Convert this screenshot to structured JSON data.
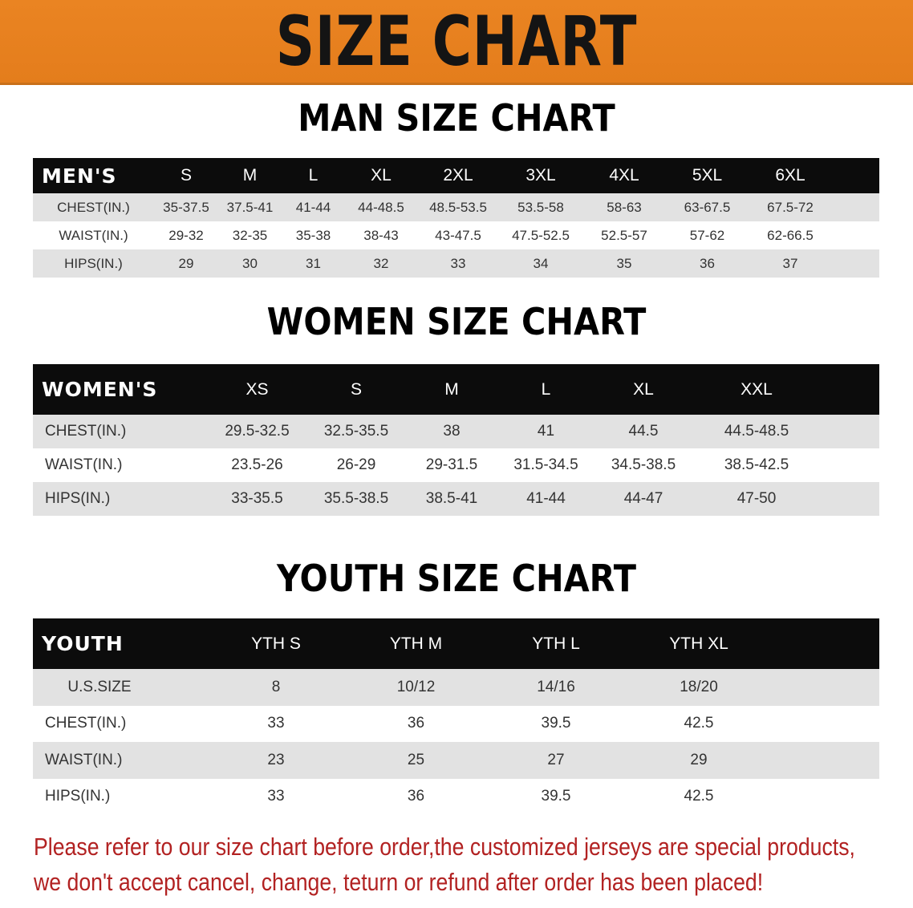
{
  "banner": {
    "title": "SIZE CHART",
    "color": "#E8801F"
  },
  "men": {
    "title": "MAN SIZE CHART",
    "header": [
      "MEN'S",
      "S",
      "M",
      "L",
      "XL",
      "2XL",
      "3XL",
      "4XL",
      "5XL",
      "6XL"
    ],
    "rows": [
      [
        "CHEST(IN.)",
        "35-37.5",
        "37.5-41",
        "41-44",
        "44-48.5",
        "48.5-53.5",
        "53.5-58",
        "58-63",
        "63-67.5",
        "67.5-72"
      ],
      [
        "WAIST(IN.)",
        "29-32",
        "32-35",
        "35-38",
        "38-43",
        "43-47.5",
        "47.5-52.5",
        "52.5-57",
        "57-62",
        "62-66.5"
      ],
      [
        "HIPS(IN.)",
        "29",
        "30",
        "31",
        "32",
        "33",
        "34",
        "35",
        "36",
        "37"
      ]
    ]
  },
  "women": {
    "title": "WOMEN SIZE CHART",
    "header": [
      "WOMEN'S",
      "XS",
      "S",
      "M",
      "L",
      "XL",
      "XXL"
    ],
    "rows": [
      [
        "CHEST(IN.)",
        "29.5-32.5",
        "32.5-35.5",
        "38",
        "41",
        "44.5",
        "44.5-48.5"
      ],
      [
        "WAIST(IN.)",
        "23.5-26",
        "26-29",
        "29-31.5",
        "31.5-34.5",
        "34.5-38.5",
        "38.5-42.5"
      ],
      [
        "HIPS(IN.)",
        "33-35.5",
        "35.5-38.5",
        "38.5-41",
        "41-44",
        "44-47",
        "47-50"
      ]
    ]
  },
  "youth": {
    "title": "YOUTH SIZE CHART",
    "header": [
      "YOUTH",
      "YTH S",
      "YTH M",
      "YTH L",
      "YTH XL"
    ],
    "rows": [
      [
        "U.S.SIZE",
        "8",
        "10/12",
        "14/16",
        "18/20"
      ],
      [
        "CHEST(IN.)",
        "33",
        "36",
        "39.5",
        "42.5"
      ],
      [
        "WAIST(IN.)",
        "23",
        "25",
        "27",
        "29"
      ],
      [
        "HIPS(IN.)",
        "33",
        "36",
        "39.5",
        "42.5"
      ]
    ]
  },
  "note": {
    "line1": "Please refer to our size chart before order,the customized jerseys are special products,",
    "line2": "we don't accept cancel, change, teturn or refund after order has been placed!",
    "color": "#B22222"
  }
}
